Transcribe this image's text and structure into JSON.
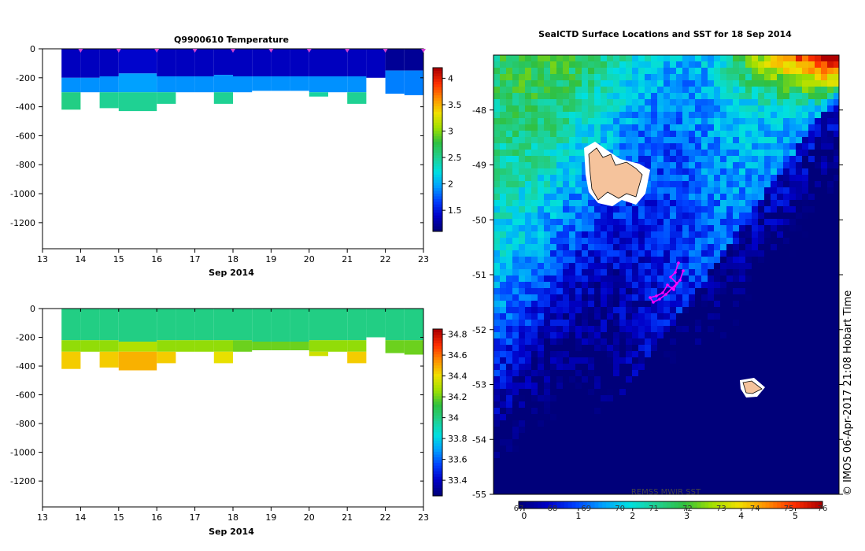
{
  "chart_data": [
    {
      "id": "temperature",
      "type": "heatmap",
      "title": "Q9900610  Temperature",
      "xlabel": "Sep 2014",
      "x_ticks": [
        "13",
        "14",
        "15",
        "16",
        "17",
        "18",
        "19",
        "20",
        "21",
        "22",
        "23"
      ],
      "y_ticks": [
        "0",
        "-200",
        "-400",
        "-600",
        "-800",
        "-1000",
        "-1200"
      ],
      "xlim": [
        13,
        23
      ],
      "ylim": [
        -1380,
        0
      ],
      "colorbar_ticks": [
        "1.5",
        "2",
        "2.5",
        "3",
        "3.5",
        "4"
      ],
      "colorbar_range": [
        1.1,
        4.2
      ],
      "colormap": [
        "#00007a",
        "#0000c8",
        "#0040ff",
        "#00a0ff",
        "#00e0e0",
        "#20d090",
        "#30c040",
        "#a0e000",
        "#f0e000",
        "#ff9000",
        "#ff3000",
        "#b00000"
      ],
      "profiles": [
        {
          "day": 13.5,
          "max_depth": -420,
          "layers": [
            [
              0,
              -200,
              1.35
            ],
            [
              -200,
              -300,
              1.9
            ],
            [
              -300,
              -420,
              2.55
            ]
          ]
        },
        {
          "day": 14.0,
          "max_depth": -300,
          "layers": [
            [
              0,
              -200,
              1.35
            ],
            [
              -200,
              -300,
              1.9
            ]
          ]
        },
        {
          "day": 14.5,
          "max_depth": -410,
          "layers": [
            [
              0,
              -190,
              1.35
            ],
            [
              -190,
              -300,
              1.9
            ],
            [
              -300,
              -410,
              2.5
            ]
          ]
        },
        {
          "day": 15.0,
          "max_depth": -430,
          "layers": [
            [
              0,
              -170,
              1.4
            ],
            [
              -170,
              -300,
              1.95
            ],
            [
              -300,
              -430,
              2.5
            ]
          ]
        },
        {
          "day": 15.5,
          "max_depth": -430,
          "layers": [
            [
              0,
              -170,
              1.4
            ],
            [
              -170,
              -300,
              1.95
            ],
            [
              -300,
              -430,
              2.5
            ]
          ]
        },
        {
          "day": 16.0,
          "max_depth": -380,
          "layers": [
            [
              0,
              -190,
              1.35
            ],
            [
              -190,
              -300,
              1.9
            ],
            [
              -300,
              -380,
              2.5
            ]
          ]
        },
        {
          "day": 16.5,
          "max_depth": -300,
          "layers": [
            [
              0,
              -190,
              1.35
            ],
            [
              -190,
              -300,
              1.9
            ]
          ]
        },
        {
          "day": 17.0,
          "max_depth": -300,
          "layers": [
            [
              0,
              -190,
              1.35
            ],
            [
              -190,
              -300,
              1.9
            ]
          ]
        },
        {
          "day": 17.5,
          "max_depth": -380,
          "layers": [
            [
              0,
              -180,
              1.35
            ],
            [
              -180,
              -300,
              1.9
            ],
            [
              -300,
              -380,
              2.5
            ]
          ]
        },
        {
          "day": 18.0,
          "max_depth": -300,
          "layers": [
            [
              0,
              -190,
              1.35
            ],
            [
              -190,
              -300,
              1.9
            ]
          ]
        },
        {
          "day": 18.5,
          "max_depth": -290,
          "layers": [
            [
              0,
              -190,
              1.35
            ],
            [
              -190,
              -290,
              1.9
            ]
          ]
        },
        {
          "day": 19.0,
          "max_depth": -290,
          "layers": [
            [
              0,
              -190,
              1.35
            ],
            [
              -190,
              -290,
              1.9
            ]
          ]
        },
        {
          "day": 19.5,
          "max_depth": -290,
          "layers": [
            [
              0,
              -190,
              1.35
            ],
            [
              -190,
              -290,
              1.9
            ]
          ]
        },
        {
          "day": 20.0,
          "max_depth": -330,
          "layers": [
            [
              0,
              -190,
              1.35
            ],
            [
              -190,
              -300,
              1.9
            ],
            [
              -300,
              -330,
              2.45
            ]
          ]
        },
        {
          "day": 20.5,
          "max_depth": -300,
          "layers": [
            [
              0,
              -190,
              1.35
            ],
            [
              -190,
              -300,
              1.9
            ]
          ]
        },
        {
          "day": 21.0,
          "max_depth": -380,
          "layers": [
            [
              0,
              -190,
              1.35
            ],
            [
              -190,
              -300,
              1.9
            ],
            [
              -300,
              -380,
              2.5
            ]
          ]
        },
        {
          "day": 21.5,
          "max_depth": -200,
          "layers": [
            [
              0,
              -200,
              1.35
            ]
          ]
        },
        {
          "day": 22.0,
          "max_depth": -310,
          "layers": [
            [
              0,
              -150,
              1.2
            ],
            [
              -150,
              -310,
              1.85
            ]
          ]
        },
        {
          "day": 22.5,
          "max_depth": -320,
          "layers": [
            [
              0,
              -150,
              1.2
            ],
            [
              -150,
              -320,
              1.85
            ]
          ]
        },
        {
          "day": 23.0,
          "max_depth": -310,
          "layers": [
            [
              0,
              -150,
              1.2
            ],
            [
              -150,
              -310,
              1.85
            ]
          ]
        }
      ],
      "markers_day": [
        14,
        15,
        16,
        17,
        18,
        19,
        20,
        21,
        22,
        23
      ]
    },
    {
      "id": "salinity",
      "type": "heatmap",
      "title": "",
      "xlabel": "Sep 2014",
      "x_ticks": [
        "13",
        "14",
        "15",
        "16",
        "17",
        "18",
        "19",
        "20",
        "21",
        "22",
        "23"
      ],
      "y_ticks": [
        "0",
        "-200",
        "-400",
        "-600",
        "-800",
        "-1000",
        "-1200"
      ],
      "xlim": [
        13,
        23
      ],
      "ylim": [
        -1380,
        0
      ],
      "colorbar_ticks": [
        "33.4",
        "33.6",
        "33.8",
        "34",
        "34.2",
        "34.4",
        "34.6",
        "34.8"
      ],
      "colorbar_range": [
        33.25,
        34.85
      ],
      "colormap": [
        "#00007a",
        "#0000c8",
        "#0040ff",
        "#00a0ff",
        "#00e0e0",
        "#20d090",
        "#30c040",
        "#a0e000",
        "#f0e000",
        "#ff9000",
        "#ff3000",
        "#b00000"
      ],
      "profiles": [
        {
          "day": 13.5,
          "max_depth": -420,
          "layers": [
            [
              0,
              -220,
              34.0
            ],
            [
              -220,
              -300,
              34.25
            ],
            [
              -300,
              -420,
              34.45
            ]
          ]
        },
        {
          "day": 14.0,
          "max_depth": -300,
          "layers": [
            [
              0,
              -220,
              34.0
            ],
            [
              -220,
              -300,
              34.25
            ]
          ]
        },
        {
          "day": 14.5,
          "max_depth": -410,
          "layers": [
            [
              0,
              -220,
              34.0
            ],
            [
              -220,
              -300,
              34.25
            ],
            [
              -300,
              -410,
              34.45
            ]
          ]
        },
        {
          "day": 15.0,
          "max_depth": -430,
          "layers": [
            [
              0,
              -230,
              34.0
            ],
            [
              -230,
              -300,
              34.3
            ],
            [
              -300,
              -430,
              34.5
            ]
          ]
        },
        {
          "day": 15.5,
          "max_depth": -430,
          "layers": [
            [
              0,
              -230,
              34.0
            ],
            [
              -230,
              -300,
              34.3
            ],
            [
              -300,
              -430,
              34.5
            ]
          ]
        },
        {
          "day": 16.0,
          "max_depth": -380,
          "layers": [
            [
              0,
              -220,
              34.0
            ],
            [
              -220,
              -300,
              34.25
            ],
            [
              -300,
              -380,
              34.45
            ]
          ]
        },
        {
          "day": 16.5,
          "max_depth": -300,
          "layers": [
            [
              0,
              -220,
              34.0
            ],
            [
              -220,
              -300,
              34.25
            ]
          ]
        },
        {
          "day": 17.0,
          "max_depth": -300,
          "layers": [
            [
              0,
              -220,
              34.0
            ],
            [
              -220,
              -300,
              34.25
            ]
          ]
        },
        {
          "day": 17.5,
          "max_depth": -380,
          "layers": [
            [
              0,
              -220,
              34.0
            ],
            [
              -220,
              -300,
              34.25
            ],
            [
              -300,
              -380,
              34.4
            ]
          ]
        },
        {
          "day": 18.0,
          "max_depth": -300,
          "layers": [
            [
              0,
              -220,
              34.0
            ],
            [
              -220,
              -300,
              34.2
            ]
          ]
        },
        {
          "day": 18.5,
          "max_depth": -290,
          "layers": [
            [
              0,
              -230,
              34.0
            ],
            [
              -230,
              -290,
              34.2
            ]
          ]
        },
        {
          "day": 19.0,
          "max_depth": -290,
          "layers": [
            [
              0,
              -230,
              34.0
            ],
            [
              -230,
              -290,
              34.2
            ]
          ]
        },
        {
          "day": 19.5,
          "max_depth": -290,
          "layers": [
            [
              0,
              -230,
              34.0
            ],
            [
              -230,
              -290,
              34.2
            ]
          ]
        },
        {
          "day": 20.0,
          "max_depth": -330,
          "layers": [
            [
              0,
              -220,
              34.0
            ],
            [
              -220,
              -300,
              34.25
            ],
            [
              -300,
              -330,
              34.35
            ]
          ]
        },
        {
          "day": 20.5,
          "max_depth": -300,
          "layers": [
            [
              0,
              -220,
              34.0
            ],
            [
              -220,
              -300,
              34.25
            ]
          ]
        },
        {
          "day": 21.0,
          "max_depth": -380,
          "layers": [
            [
              0,
              -220,
              34.0
            ],
            [
              -220,
              -300,
              34.25
            ],
            [
              -300,
              -380,
              34.45
            ]
          ]
        },
        {
          "day": 21.5,
          "max_depth": -200,
          "layers": [
            [
              0,
              -200,
              34.0
            ]
          ]
        },
        {
          "day": 22.0,
          "max_depth": -310,
          "layers": [
            [
              0,
              -220,
              34.0
            ],
            [
              -220,
              -310,
              34.2
            ]
          ]
        },
        {
          "day": 22.5,
          "max_depth": -320,
          "layers": [
            [
              0,
              -220,
              34.0
            ],
            [
              -220,
              -320,
              34.2
            ]
          ]
        },
        {
          "day": 23.0,
          "max_depth": -310,
          "layers": [
            [
              0,
              -220,
              34.0
            ],
            [
              -220,
              -310,
              34.2
            ]
          ]
        }
      ]
    },
    {
      "id": "sst_map",
      "type": "heatmap",
      "title": "SealCTD Surface Locations and SST for 18 Sep 2014",
      "y_ticks": [
        "-48",
        "-49",
        "-50",
        "-51",
        "-52",
        "-53",
        "-54",
        "-55"
      ],
      "ylim": [
        -55.0,
        -47.0
      ],
      "colorbar_label": "REMSS MWIR SST",
      "colorbar_ticks_bottom": [
        "0",
        "1",
        "2",
        "3",
        "4",
        "5"
      ],
      "colorbar_ticks_top": [
        "67",
        "68",
        "69",
        "70",
        "71",
        "72",
        "73",
        "74",
        "75",
        "76"
      ],
      "colorbar_range": [
        -0.1,
        5.5
      ],
      "colormap": [
        "#00007a",
        "#0000c8",
        "#0040ff",
        "#00a0ff",
        "#00e0e0",
        "#20d090",
        "#30c040",
        "#a0e000",
        "#f0e000",
        "#ff9000",
        "#ff3000",
        "#b00000"
      ],
      "land_color": "#f5c39c",
      "track_color": "#ff00ff"
    }
  ],
  "credit": "© IMOS 06-Apr-2017 21:08 Hobart Time"
}
